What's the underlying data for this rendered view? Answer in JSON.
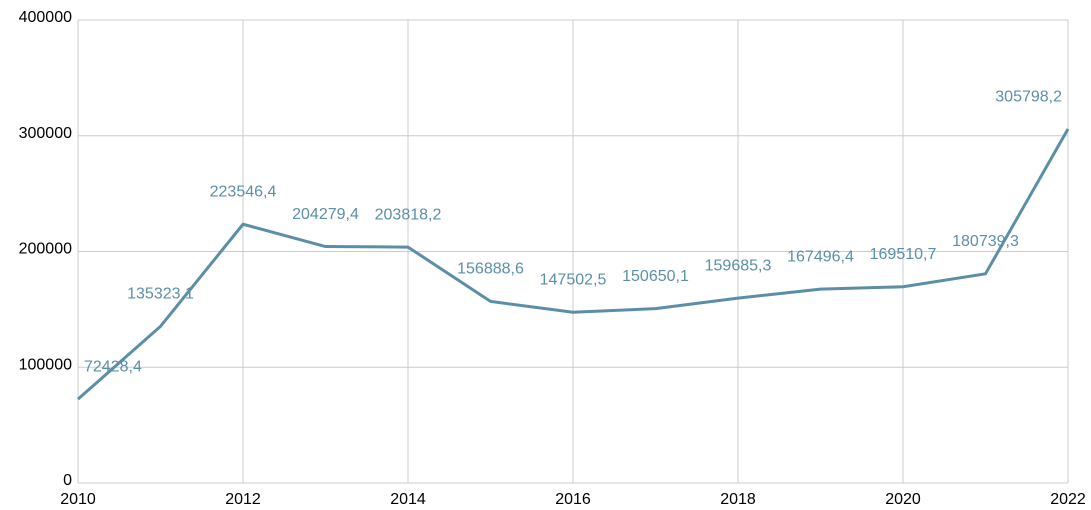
{
  "chart_data": {
    "type": "line",
    "x": [
      2010,
      2011,
      2012,
      2013,
      2014,
      2015,
      2016,
      2017,
      2018,
      2019,
      2020,
      2021,
      2022
    ],
    "values": [
      72428.4,
      135323.1,
      223546.4,
      204279.4,
      203818.2,
      156888.6,
      147502.5,
      150650.1,
      159685.3,
      167496.4,
      169510.7,
      180739.3,
      305798.2
    ],
    "value_labels": [
      "72428,4",
      "135323,1",
      "223546,4",
      "204279,4",
      "203818,2",
      "156888,6",
      "147502,5",
      "150650,1",
      "159685,3",
      "167496,4",
      "169510,7",
      "180739,3",
      "305798,2"
    ],
    "color": "#5b8fa8",
    "xlim": [
      2010,
      2022
    ],
    "xticks": [
      2010,
      2012,
      2014,
      2016,
      2018,
      2020,
      2022
    ],
    "ylim": [
      0,
      400000
    ],
    "yticks": [
      0,
      100000,
      200000,
      300000,
      400000
    ],
    "grid": true
  }
}
